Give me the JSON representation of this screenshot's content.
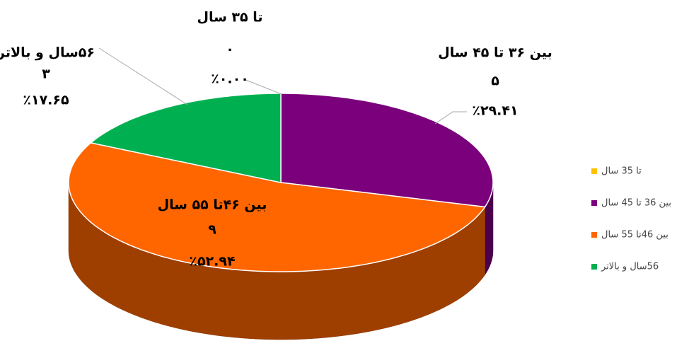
{
  "chart_data": {
    "type": "pie",
    "categories": [
      "تا 35 سال",
      "بین 36 تا 45 سال",
      "بین  46تا 55 سال",
      "56سال و بالاتر"
    ],
    "values": [
      0,
      5,
      9,
      3
    ],
    "value_labels": [
      "۰",
      "۵",
      "۹",
      "۳"
    ],
    "percents": [
      0,
      29.41,
      52.94,
      17.65
    ],
    "percent_labels": [
      "٪۰.۰۰",
      "٪۲۹.۴۱",
      "٪۵۲.۹۴",
      "٪۱۷.۶۵"
    ],
    "label_names": [
      "تا ۳۵ سال",
      "بین ۳۶ تا ۴۵ سال",
      "بین  ۴۶تا ۵۵ سال",
      "۵۶سال و بالاتر"
    ],
    "colors": [
      "#ffc000",
      "#7b007b",
      "#ff6600",
      "#00b050"
    ]
  }
}
